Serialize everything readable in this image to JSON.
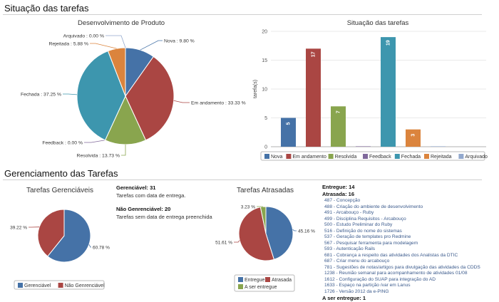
{
  "section1": {
    "title": "Situação das tarefas"
  },
  "section2": {
    "title": "Gerenciamento das Tarefas"
  },
  "colors": {
    "nova": "#4572a7",
    "andamento": "#aa4643",
    "resolvida": "#89a54e",
    "feedback": "#80699b",
    "fechada": "#3d96ae",
    "rejeitada": "#db843d",
    "arquivado": "#92a8cd"
  },
  "chart_data": [
    {
      "type": "pie",
      "title": "Desenvolvimento de Produto",
      "slices": [
        {
          "name": "Nova",
          "value": 9.8,
          "label": "Nova : 9.80 %"
        },
        {
          "name": "Em andamento",
          "value": 33.33,
          "label": "Em andamento : 33.33 %"
        },
        {
          "name": "Resolvida",
          "value": 13.73,
          "label": "Resolvida : 13.73 %"
        },
        {
          "name": "Feedback",
          "value": 0.0,
          "label": "Feedback : 0.00 %"
        },
        {
          "name": "Fechada",
          "value": 37.25,
          "label": "Fechada : 37.25 %"
        },
        {
          "name": "Rejeitada",
          "value": 5.88,
          "label": "Rejeitada : 5.88 %"
        },
        {
          "name": "Arquivado",
          "value": 0.0,
          "label": "Arquivado : 0.00 %"
        }
      ]
    },
    {
      "type": "bar",
      "title": "Situação das tarefas",
      "ylabel": "tarefa(s)",
      "ylim": [
        0,
        20
      ],
      "yticks": [
        "0",
        "5",
        "10",
        "15",
        "20"
      ],
      "grid": true,
      "legend": "bottom",
      "series": [
        {
          "name": "Nova",
          "value": 5,
          "label": "5"
        },
        {
          "name": "Em andamento",
          "value": 17,
          "label": "17"
        },
        {
          "name": "Resolvida",
          "value": 7,
          "label": "7"
        },
        {
          "name": "Feedback",
          "value": 0,
          "label": ""
        },
        {
          "name": "Fechada",
          "value": 19,
          "label": "19"
        },
        {
          "name": "Rejeitada",
          "value": 3,
          "label": "3"
        },
        {
          "name": "Arquivado",
          "value": 0,
          "label": ""
        }
      ]
    },
    {
      "type": "pie",
      "title": "Tarefas Gerenciáveis",
      "slices": [
        {
          "name": "Gerenciável",
          "value": 60.78,
          "label": "60.78 %",
          "color": "#4572a7"
        },
        {
          "name": "Não Genrenciável",
          "value": 39.22,
          "label": "39.22 %",
          "color": "#aa4643"
        }
      ]
    },
    {
      "type": "pie",
      "title": "Tarefas Atrasadas",
      "slices": [
        {
          "name": "Entregue",
          "value": 45.16,
          "label": "45.16 %",
          "color": "#4572a7"
        },
        {
          "name": "Atrasada",
          "value": 51.61,
          "label": "51.61 %",
          "color": "#aa4643"
        },
        {
          "name": "A ser entregue",
          "value": 3.23,
          "label": "3.23 %",
          "color": "#89a54e"
        }
      ]
    }
  ],
  "gerenciavel_info": {
    "gerenciavel": "Gerenciável: 31",
    "gerenciavel_desc": "Tarefas com data de entrega.",
    "nao_gerenciavel": "Não Genrenciável: 20",
    "nao_gerenciavel_desc": "Tarefas sem data de entrega preenchida"
  },
  "late_info": {
    "entregue": "Entregue: 14",
    "atrasada": "Atrasada: 16",
    "items": [
      "487 - Concepção",
      "488 - Criação do ambiente de desenvolvimento",
      "491 - Arcabouço - Ruby",
      "499 - Disciplina Requisitos - Arcabouço",
      "500 - Estudo Preliminar do Ruby",
      "516 - Definição do nome do sistemas",
      "537 - Geração de templates pro Redmine",
      "567 - Pesquisar ferramenta para modelagem",
      "593 - Autenticação Rails",
      "681 - Cobrança a respeito das atividades dos Analistas da DTIC",
      "687 - Criar menu do arcabouço",
      "781 - Sugestões de notas/artigos para divulgação das atividades da CDDS",
      "1238 - Reunião semanal para acompanhamento de atividades 01/08",
      "1612 - Configuração do SUAP para integração do AD",
      "1633 - Espaço na partição /var em Lanus",
      "1726 - Versão 2012 da e-PING"
    ],
    "a_ser_entregue": "A ser entregue: 1"
  }
}
